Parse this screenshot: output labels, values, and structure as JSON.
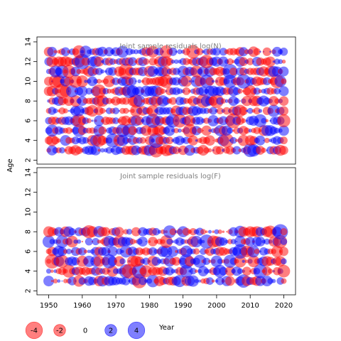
{
  "chart_data": {
    "type": "scatter",
    "ylabel": "Age",
    "xlabel": "Year",
    "colors": {
      "positive": "#0000ff",
      "negative": "#ff0000"
    },
    "x_ticks": [
      1950,
      1960,
      1970,
      1980,
      1990,
      2000,
      2010,
      2020
    ],
    "y_ticks": [
      2,
      4,
      6,
      8,
      10,
      12,
      14
    ],
    "xlim": [
      1946.5,
      2023.5
    ],
    "panels": [
      {
        "title": "Joint sample residuals log(N)",
        "ylim": [
          1.6,
          14.5
        ],
        "ages": [
          3,
          4,
          5,
          6,
          7,
          8,
          9,
          10,
          11,
          12,
          13
        ],
        "years": [
          1950,
          2020
        ],
        "seed": 11
      },
      {
        "title": "Joint sample residuals log(F)",
        "ylim": [
          1.6,
          14.5
        ],
        "ages": [
          3,
          4,
          5,
          6,
          7,
          8
        ],
        "years": [
          1950,
          2020
        ],
        "seed": 29
      }
    ],
    "legend": {
      "values": [
        -4,
        -2,
        0,
        2,
        4
      ],
      "labels": [
        "-4",
        "-2",
        "0",
        "2",
        "4"
      ]
    }
  }
}
